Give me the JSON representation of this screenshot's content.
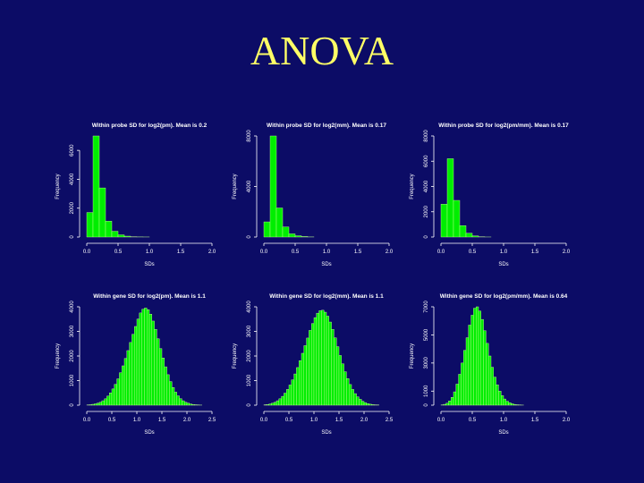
{
  "slide": {
    "title": "ANOVA"
  },
  "colors": {
    "background": "#0c0c66",
    "title": "#ffff66",
    "bars": "#00ee00",
    "bar_edge": "#ccff99",
    "axis": "#ffffff"
  },
  "chart_data": [
    {
      "type": "bar",
      "title": "Within probe SD for log2(pm). Mean is 0.2",
      "xlabel": "SDs",
      "ylabel": "Frequency",
      "xlim": [
        0,
        2
      ],
      "ylim": [
        0,
        7000
      ],
      "xticks": [
        "0.0",
        "0.5",
        "1.0",
        "1.5",
        "2.0"
      ],
      "yticks": [
        "0",
        "2000",
        "4000",
        "6000"
      ],
      "bin_width": 0.1,
      "values": [
        1700,
        7000,
        3400,
        1100,
        400,
        150,
        60,
        20,
        10,
        5
      ]
    },
    {
      "type": "bar",
      "title": "Within probe SD for log2(mm). Mean is 0.17",
      "xlabel": "SDs",
      "ylabel": "Frequency",
      "xlim": [
        0,
        2
      ],
      "ylim": [
        0,
        8000
      ],
      "xticks": [
        "0.0",
        "0.5",
        "1.0",
        "1.5",
        "2.0"
      ],
      "yticks": [
        "0",
        "4000",
        "8000"
      ],
      "bin_width": 0.1,
      "values": [
        1200,
        8000,
        2300,
        800,
        250,
        100,
        40,
        10
      ]
    },
    {
      "type": "bar",
      "title": "Within probe SD for log2(pm/mm). Mean is 0.17",
      "xlabel": "SDs",
      "ylabel": "Frequency",
      "xlim": [
        0,
        2
      ],
      "ylim": [
        0,
        8000
      ],
      "xticks": [
        "0.0",
        "0.5",
        "1.0",
        "1.5",
        "2.0"
      ],
      "yticks": [
        "0",
        "2000",
        "4000",
        "6000",
        "8000"
      ],
      "bin_width": 0.1,
      "values": [
        2600,
        6200,
        2900,
        900,
        300,
        90,
        20,
        5
      ]
    },
    {
      "type": "bar",
      "title": "Within gene SD for log2(pm). Mean is 1.1",
      "xlabel": "SDs",
      "ylabel": "Frequency",
      "xlim": [
        0,
        2.5
      ],
      "ylim": [
        0,
        4000
      ],
      "xticks": [
        "0.0",
        "0.5",
        "1.0",
        "1.5",
        "2.0",
        "2.5"
      ],
      "yticks": [
        "0",
        "1000",
        "2000",
        "3000",
        "4000"
      ],
      "bin_width": 0.05,
      "values": [
        10,
        20,
        35,
        55,
        80,
        120,
        180,
        260,
        370,
        500,
        660,
        850,
        1070,
        1320,
        1600,
        1900,
        2220,
        2550,
        2880,
        3200,
        3500,
        3750,
        3900,
        3950,
        3880,
        3700,
        3420,
        3080,
        2700,
        2300,
        1920,
        1560,
        1240,
        960,
        720,
        530,
        380,
        265,
        180,
        120,
        80,
        50,
        30,
        18,
        10,
        5
      ]
    },
    {
      "type": "bar",
      "title": "Within gene SD for log2(mm). Mean is 1.1",
      "xlabel": "SDs",
      "ylabel": "Frequency",
      "xlim": [
        0,
        2.5
      ],
      "ylim": [
        0,
        4000
      ],
      "xticks": [
        "0.0",
        "0.5",
        "1.0",
        "1.5",
        "2.0",
        "2.5"
      ],
      "yticks": [
        "0",
        "1000",
        "2000",
        "3000",
        "4000"
      ],
      "bin_width": 0.05,
      "values": [
        15,
        30,
        50,
        80,
        120,
        180,
        260,
        360,
        490,
        640,
        820,
        1030,
        1270,
        1530,
        1810,
        2110,
        2420,
        2730,
        3040,
        3320,
        3560,
        3740,
        3840,
        3860,
        3780,
        3620,
        3380,
        3080,
        2740,
        2380,
        2020,
        1680,
        1360,
        1080,
        840,
        640,
        470,
        340,
        240,
        160,
        105,
        65,
        40,
        24,
        14,
        8
      ]
    },
    {
      "type": "bar",
      "title": "Within gene SD for log2(pm/mm). Mean is 0.64",
      "xlabel": "SDs",
      "ylabel": "Frequency",
      "xlim": [
        0,
        2
      ],
      "ylim": [
        0,
        7000
      ],
      "xticks": [
        "0.0",
        "0.5",
        "1.0",
        "1.5",
        "2.0"
      ],
      "yticks": [
        "0",
        "1000",
        "3000",
        "5000",
        "7000"
      ],
      "bin_width": 0.04,
      "values": [
        20,
        60,
        140,
        300,
        560,
        950,
        1500,
        2200,
        3000,
        3900,
        4800,
        5700,
        6400,
        6900,
        7000,
        6700,
        6100,
        5300,
        4400,
        3500,
        2700,
        2000,
        1450,
        1000,
        680,
        440,
        280,
        170,
        100,
        55,
        30,
        15,
        8
      ]
    }
  ]
}
